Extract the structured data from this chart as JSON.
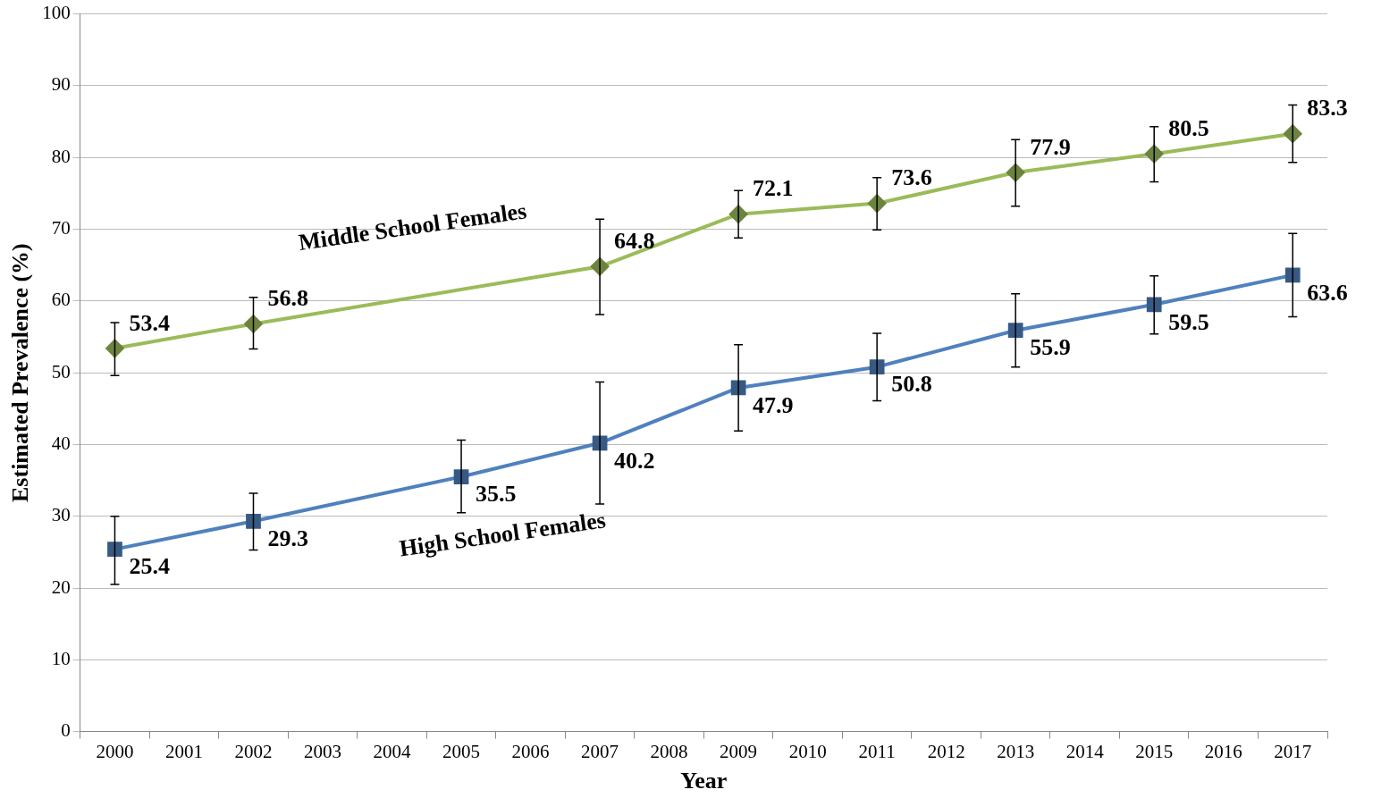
{
  "chart_data": {
    "type": "line",
    "xlabel": "Year",
    "ylabel": "Estimated Prevalence (%)",
    "categories": [
      "2000",
      "2001",
      "2002",
      "2003",
      "2004",
      "2005",
      "2006",
      "2007",
      "2008",
      "2009",
      "2010",
      "2011",
      "2012",
      "2013",
      "2014",
      "2015",
      "2016",
      "2017"
    ],
    "series": [
      {
        "name": "Middle School Females",
        "color": "#9bbb59",
        "marker": "diamond",
        "values": [
          53.4,
          null,
          56.8,
          null,
          null,
          null,
          null,
          64.8,
          null,
          72.1,
          null,
          73.6,
          null,
          77.9,
          null,
          80.5,
          null,
          83.3
        ],
        "errors": [
          [
            49.6,
            57.0
          ],
          null,
          [
            53.3,
            60.5
          ],
          null,
          null,
          null,
          null,
          [
            58.1,
            71.4
          ],
          null,
          [
            68.8,
            75.4
          ],
          null,
          [
            69.9,
            77.2
          ],
          null,
          [
            73.2,
            82.5
          ],
          null,
          [
            76.6,
            84.3
          ],
          null,
          [
            79.3,
            87.3
          ]
        ]
      },
      {
        "name": "High School Females",
        "color": "#4f81bd",
        "marker": "square",
        "values": [
          25.4,
          null,
          29.3,
          null,
          null,
          35.5,
          null,
          40.2,
          null,
          47.9,
          null,
          50.8,
          null,
          55.9,
          null,
          59.5,
          null,
          63.6
        ],
        "errors": [
          [
            20.5,
            30.0
          ],
          null,
          [
            25.3,
            33.2
          ],
          null,
          null,
          [
            30.5,
            40.6
          ],
          null,
          [
            31.7,
            48.7
          ],
          null,
          [
            41.9,
            53.9
          ],
          null,
          [
            46.1,
            55.5
          ],
          null,
          [
            50.8,
            61.0
          ],
          null,
          [
            55.4,
            63.5
          ],
          null,
          [
            57.8,
            69.4
          ]
        ]
      }
    ],
    "ylim": [
      0,
      100
    ],
    "yticks": [
      0,
      10,
      20,
      30,
      40,
      50,
      60,
      70,
      80,
      90,
      100
    ],
    "grid": "y",
    "legend": false,
    "data_labels": true,
    "line_style": "solid"
  }
}
